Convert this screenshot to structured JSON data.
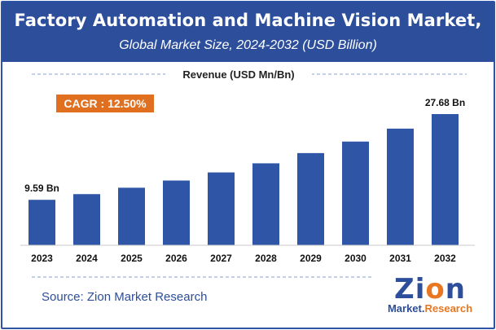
{
  "header": {
    "title": "Factory Automation and Machine Vision Market,",
    "subtitle": "Global Market Size, 2024-2032 (USD Billion)"
  },
  "legend_label": "Revenue (USD Mn/Bn)",
  "cagr_label": "CAGR : 12.50%",
  "source": "Source: Zion Market Research",
  "logo": {
    "main_a": "Zi",
    "main_o": "o",
    "main_b": "n",
    "sub_a": "Market.",
    "sub_b": "Research"
  },
  "colors": {
    "bar": "#2f56a6",
    "header": "#2c4e9b",
    "cagr_bg": "#e06f1f",
    "accent": "#e87722"
  },
  "chart_data": {
    "type": "bar",
    "categories": [
      "2023",
      "2024",
      "2025",
      "2026",
      "2027",
      "2028",
      "2029",
      "2030",
      "2031",
      "2032"
    ],
    "values": [
      9.59,
      10.79,
      12.14,
      13.66,
      15.37,
      17.29,
      19.45,
      21.88,
      24.61,
      27.68
    ],
    "data_labels": {
      "first": "9.59 Bn",
      "last": "27.68 Bn"
    },
    "title": "",
    "xlabel": "",
    "ylabel": "",
    "ylim": [
      0,
      30
    ],
    "grid": false
  }
}
